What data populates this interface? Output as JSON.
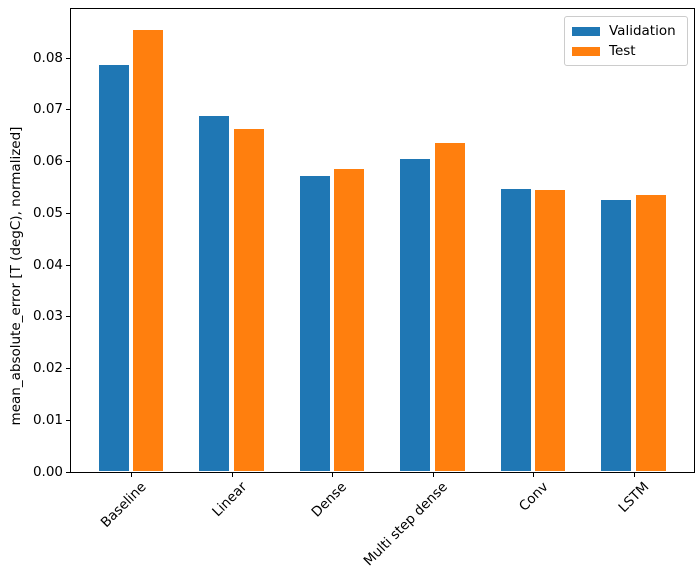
{
  "chart_data": {
    "type": "bar",
    "categories": [
      "Baseline",
      "Linear",
      "Dense",
      "Multi step dense",
      "Conv",
      "LSTM"
    ],
    "series": [
      {
        "name": "Validation",
        "color": "#1f77b4",
        "values": [
          0.0785,
          0.0686,
          0.0571,
          0.0604,
          0.0546,
          0.0524
        ]
      },
      {
        "name": "Test",
        "color": "#ff7f0e",
        "values": [
          0.0853,
          0.0662,
          0.0583,
          0.0634,
          0.0544,
          0.0533
        ]
      }
    ],
    "title": "",
    "xlabel": "",
    "ylabel": "mean_absolute_error [T (degC), normalized]",
    "ylim": [
      0.0,
      0.0895
    ],
    "ytick_step": 0.01,
    "ytick_labels": [
      "0.00",
      "0.01",
      "0.02",
      "0.03",
      "0.04",
      "0.05",
      "0.06",
      "0.07",
      "0.08"
    ],
    "xtick_rotation_deg": 45,
    "bar_width_units": 0.3,
    "bar_offset_units": 0.17,
    "grid": false,
    "legend_position": "upper right"
  },
  "legend": {
    "items": [
      {
        "label": "Validation",
        "color": "#1f77b4"
      },
      {
        "label": "Test",
        "color": "#ff7f0e"
      }
    ]
  }
}
